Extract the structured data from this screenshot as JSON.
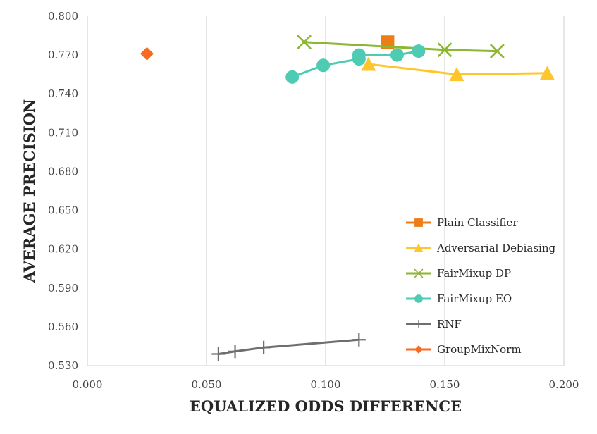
{
  "chart_data": {
    "type": "scatter",
    "xlabel": "EQUALIZED ODDS DIFFERENCE",
    "ylabel": "AVERAGE PRECISION",
    "xlim": [
      0.0,
      0.2
    ],
    "ylim": [
      0.53,
      0.8
    ],
    "x_ticks": [
      "0.000",
      "0.050",
      "0.100",
      "0.150",
      "0.200"
    ],
    "y_ticks": [
      "0.530",
      "0.560",
      "0.590",
      "0.620",
      "0.650",
      "0.680",
      "0.710",
      "0.740",
      "0.770",
      "0.800"
    ],
    "grid": "vertical",
    "legend_position": "bottom-right",
    "series": [
      {
        "name": "Plain Classifier",
        "color": "#ED7D16",
        "marker": "square",
        "line": false,
        "points": [
          [
            0.126,
            0.78
          ]
        ]
      },
      {
        "name": "Adversarial Debiasing",
        "color": "#FFC62B",
        "marker": "triangle",
        "line": true,
        "points": [
          [
            0.118,
            0.763
          ],
          [
            0.155,
            0.755
          ],
          [
            0.193,
            0.756
          ]
        ]
      },
      {
        "name": "FairMixup DP",
        "color": "#8DB732",
        "marker": "x",
        "line": true,
        "points": [
          [
            0.091,
            0.78
          ],
          [
            0.15,
            0.774
          ],
          [
            0.172,
            0.773
          ]
        ]
      },
      {
        "name": "FairMixup EO",
        "color": "#4ECBB3",
        "marker": "circle",
        "line": true,
        "points": [
          [
            0.086,
            0.753
          ],
          [
            0.099,
            0.762
          ],
          [
            0.114,
            0.767
          ],
          [
            0.114,
            0.77
          ],
          [
            0.13,
            0.77
          ],
          [
            0.139,
            0.773
          ]
        ]
      },
      {
        "name": "RNF",
        "color": "#6E6E6E",
        "marker": "plus",
        "line": true,
        "points": [
          [
            0.055,
            0.539
          ],
          [
            0.062,
            0.541
          ],
          [
            0.074,
            0.544
          ],
          [
            0.114,
            0.55
          ]
        ]
      },
      {
        "name": "GroupMixNorm",
        "color": "#F86A1E",
        "marker": "diamond",
        "line": false,
        "points": [
          [
            0.025,
            0.771
          ]
        ]
      }
    ]
  }
}
